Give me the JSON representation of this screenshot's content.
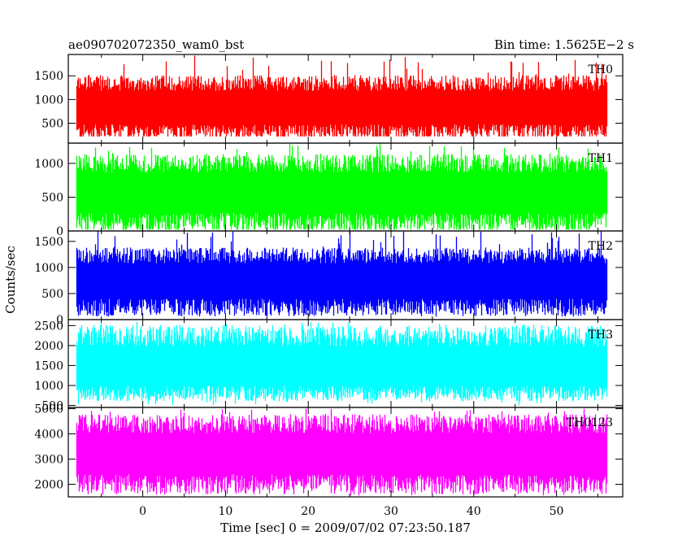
{
  "chart_data": {
    "type": "line",
    "title": "ae090702072350_wam0_bst",
    "subtitle": "Bin time: 1.5625E−2 s",
    "xlabel": "Time [sec] 0 = 2009/07/02 07:23:50.187",
    "ylabel": "Counts/sec",
    "xlim": [
      -9,
      58
    ],
    "x_data_range": [
      -8,
      56
    ],
    "x_ticks": [
      0,
      10,
      20,
      30,
      40,
      50
    ],
    "bin_time": 0.015625,
    "panels": [
      {
        "name": "TH0",
        "color": "#ff0000",
        "ylim": [
          80,
          1950
        ],
        "y_ticks": [
          500,
          1000,
          1500
        ],
        "typical_low": 300,
        "typical_high": 1350,
        "mean": 800,
        "min": 220,
        "max": 1950
      },
      {
        "name": "TH1",
        "color": "#00ff00",
        "ylim": [
          0,
          1300
        ],
        "y_ticks": [
          0,
          500,
          1000
        ],
        "typical_low": 120,
        "typical_high": 1000,
        "mean": 550,
        "min": 20,
        "max": 1300
      },
      {
        "name": "TH2",
        "color": "#0000ff",
        "ylim": [
          0,
          1700
        ],
        "y_ticks": [
          0,
          500,
          1000,
          1500
        ],
        "typical_low": 230,
        "typical_high": 1230,
        "mean": 720,
        "min": 60,
        "max": 1700
      },
      {
        "name": "TH3",
        "color": "#00ffff",
        "ylim": [
          450,
          2650
        ],
        "y_ticks": [
          500,
          1000,
          1500,
          2000,
          2500
        ],
        "typical_low": 800,
        "typical_high": 2250,
        "mean": 1350,
        "min": 500,
        "max": 2600
      },
      {
        "name": "TH0123",
        "color": "#ff00ff",
        "ylim": [
          1500,
          5050
        ],
        "y_ticks": [
          2000,
          3000,
          4000,
          5000
        ],
        "typical_low": 2000,
        "typical_high": 4400,
        "mean": 3150,
        "min": 1550,
        "max": 5000
      }
    ]
  }
}
